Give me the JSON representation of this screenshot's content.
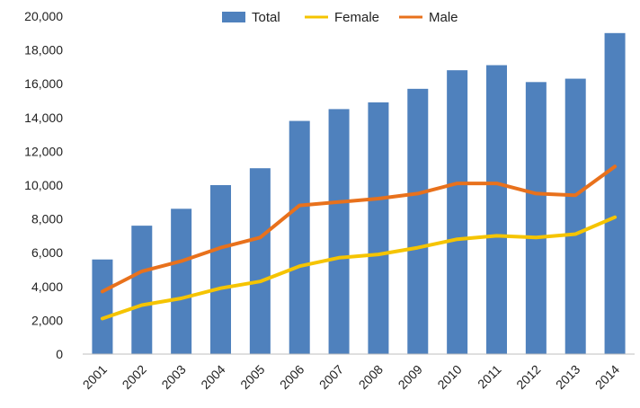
{
  "chart_data": {
    "type": "bar",
    "title": "",
    "xlabel": "",
    "ylabel": "",
    "categories": [
      "2001",
      "2002",
      "2003",
      "2004",
      "2005",
      "2006",
      "2007",
      "2008",
      "2009",
      "2010",
      "2011",
      "2012",
      "2013",
      "2014"
    ],
    "ylim": [
      0,
      20000
    ],
    "y_ticks": [
      "0",
      "2,000",
      "4,000",
      "6,000",
      "8,000",
      "10,000",
      "12,000",
      "14,000",
      "16,000",
      "18,000",
      "20,000"
    ],
    "grid": false,
    "legend_position": "top-center",
    "series": [
      {
        "name": "Total",
        "type": "bar",
        "color": "#4f81bd",
        "values": [
          5600,
          7600,
          8600,
          10000,
          11000,
          13800,
          14500,
          14900,
          15700,
          16800,
          17100,
          16100,
          16300,
          19000
        ]
      },
      {
        "name": "Female",
        "type": "line",
        "color": "#f5c400",
        "values": [
          2100,
          2900,
          3300,
          3900,
          4300,
          5200,
          5700,
          5900,
          6300,
          6800,
          7000,
          6900,
          7100,
          8100
        ]
      },
      {
        "name": "Male",
        "type": "line",
        "color": "#e8711c",
        "values": [
          3700,
          4900,
          5500,
          6300,
          6900,
          8800,
          9000,
          9200,
          9500,
          10100,
          10100,
          9500,
          9400,
          11100
        ]
      }
    ]
  }
}
